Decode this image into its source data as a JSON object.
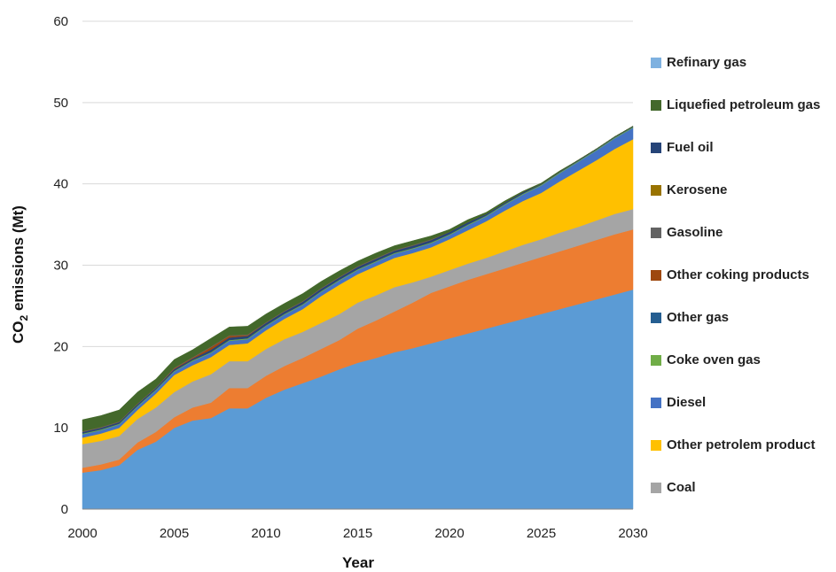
{
  "chart_data": {
    "type": "area",
    "stacked": true,
    "xlabel": "Year",
    "ylabel": "CO2 emissions (Mt)",
    "ylabel_main": "CO",
    "ylabel_sub": "2",
    "ylabel_rest": " emissions (Mt)",
    "xlim": [
      2000,
      2030
    ],
    "ylim": [
      0,
      60
    ],
    "x_ticks": [
      2000,
      2005,
      2010,
      2015,
      2020,
      2025,
      2030
    ],
    "y_ticks": [
      0,
      10,
      20,
      30,
      40,
      50,
      60
    ],
    "grid": "horizontal",
    "legend_position": "right",
    "x": [
      2000,
      2001,
      2002,
      2003,
      2004,
      2005,
      2006,
      2007,
      2008,
      2009,
      2010,
      2011,
      2012,
      2013,
      2014,
      2015,
      2016,
      2017,
      2018,
      2019,
      2020,
      2021,
      2022,
      2023,
      2024,
      2025,
      2026,
      2027,
      2028,
      2029,
      2030
    ],
    "series": [
      {
        "name": "Coal",
        "color": "#5b9bd5",
        "values": [
          4.5,
          4.8,
          5.4,
          7.3,
          8.3,
          10.0,
          10.9,
          11.2,
          12.4,
          12.4,
          13.7,
          14.7,
          15.5,
          16.3,
          17.2,
          18.0,
          18.6,
          19.3,
          19.8,
          20.4,
          21.0,
          21.6,
          22.2,
          22.8,
          23.4,
          24.0,
          24.6,
          25.2,
          25.8,
          26.4,
          27.0
        ]
      },
      {
        "name": "Other petrolem product",
        "color": "#ed7d31",
        "values": [
          0.6,
          0.7,
          0.7,
          0.9,
          1.2,
          1.3,
          1.6,
          1.9,
          2.5,
          2.5,
          2.7,
          2.9,
          3.1,
          3.4,
          3.6,
          4.2,
          4.6,
          5.0,
          5.6,
          6.2,
          6.4,
          6.6,
          6.7,
          6.8,
          6.9,
          7.0,
          7.1,
          7.2,
          7.3,
          7.4,
          7.4
        ]
      },
      {
        "name": "Diesel",
        "color": "#a5a5a5",
        "values": [
          2.9,
          2.9,
          2.9,
          2.9,
          3.0,
          3.1,
          3.2,
          3.5,
          3.3,
          3.3,
          3.3,
          3.3,
          3.2,
          3.2,
          3.2,
          3.2,
          3.1,
          3.0,
          2.5,
          2.0,
          2.0,
          2.0,
          2.0,
          2.1,
          2.2,
          2.2,
          2.3,
          2.3,
          2.4,
          2.5,
          2.5
        ]
      },
      {
        "name": "Coke oven gas",
        "color": "#ffc000",
        "values": [
          0.8,
          0.9,
          1.0,
          1.1,
          1.7,
          2.1,
          2.0,
          2.1,
          2.0,
          2.2,
          2.3,
          2.5,
          2.8,
          3.3,
          3.6,
          3.5,
          3.6,
          3.6,
          3.6,
          3.6,
          3.8,
          4.1,
          4.5,
          5.0,
          5.4,
          5.7,
          6.3,
          6.9,
          7.4,
          8.0,
          8.6
        ]
      },
      {
        "name": "Other gas",
        "color": "#4472c4",
        "values": [
          0.4,
          0.4,
          0.4,
          0.4,
          0.4,
          0.4,
          0.5,
          0.5,
          0.5,
          0.5,
          0.5,
          0.5,
          0.5,
          0.5,
          0.5,
          0.5,
          0.5,
          0.5,
          0.5,
          0.5,
          0.5,
          0.6,
          0.6,
          0.7,
          0.8,
          0.9,
          1.0,
          1.1,
          1.2,
          1.3,
          1.4
        ]
      },
      {
        "name": "Other coking products",
        "color": "#70ad47",
        "values": [
          0.1,
          0.1,
          0.1,
          0.1,
          0.1,
          0.1,
          0.1,
          0.1,
          0.1,
          0.1,
          0.1,
          0.1,
          0.1,
          0.1,
          0.1,
          0.1,
          0.1,
          0.1,
          0.1,
          0.1,
          0.1,
          0.1,
          0.1,
          0.1,
          0.1,
          0.1,
          0.1,
          0.1,
          0.1,
          0.1,
          0.1
        ]
      },
      {
        "name": "Gasoline",
        "color": "#264478",
        "values": [
          0.2,
          0.2,
          0.2,
          0.2,
          0.2,
          0.2,
          0.2,
          0.3,
          0.3,
          0.3,
          0.3,
          0.3,
          0.3,
          0.3,
          0.3,
          0.3,
          0.3,
          0.3,
          0.3,
          0.3,
          0.3,
          0.3,
          0.2,
          0.2,
          0.2,
          0.1,
          0.1,
          0.1,
          0.1,
          0.1,
          0.1
        ]
      },
      {
        "name": "Kerosene",
        "color": "#9e480e",
        "values": [
          0.0,
          0.0,
          0.0,
          0.0,
          0.0,
          0.1,
          0.1,
          0.3,
          0.2,
          0.1,
          0.0,
          0.0,
          0.0,
          0.0,
          0.0,
          0.0,
          0.0,
          0.0,
          0.0,
          0.0,
          0.0,
          0.0,
          0.0,
          0.0,
          0.0,
          0.0,
          0.0,
          0.0,
          0.0,
          0.0,
          0.0
        ]
      },
      {
        "name": "Fuel oil",
        "color": "#636363",
        "values": [
          0.1,
          0.1,
          0.1,
          0.1,
          0.1,
          0.1,
          0.1,
          0.1,
          0.1,
          0.1,
          0.1,
          0.1,
          0.1,
          0.1,
          0.1,
          0.1,
          0.1,
          0.1,
          0.1,
          0.1,
          0.0,
          0.0,
          0.0,
          0.0,
          0.0,
          0.0,
          0.0,
          0.0,
          0.0,
          0.0,
          0.0
        ]
      },
      {
        "name": "Liquefied petroleum gas",
        "color": "#997300",
        "values": [
          0.0,
          0.0,
          0.0,
          0.0,
          0.0,
          0.0,
          0.0,
          0.0,
          0.0,
          0.0,
          0.0,
          0.0,
          0.0,
          0.0,
          0.0,
          0.0,
          0.0,
          0.0,
          0.0,
          0.0,
          0.0,
          0.0,
          0.0,
          0.0,
          0.0,
          0.0,
          0.0,
          0.0,
          0.0,
          0.0,
          0.0
        ]
      },
      {
        "name": "Refinary gas",
        "color": "#43682b",
        "values": [
          1.4,
          1.4,
          1.4,
          1.4,
          1.0,
          1.0,
          0.9,
          1.0,
          1.0,
          1.0,
          1.0,
          0.9,
          0.9,
          0.8,
          0.7,
          0.6,
          0.6,
          0.5,
          0.5,
          0.4,
          0.3,
          0.3,
          0.2,
          0.2,
          0.1,
          0.1,
          0.1,
          0.0,
          0.0,
          0.0,
          0.0
        ]
      }
    ],
    "legend": [
      {
        "label": "Refinary gas",
        "color": "#7eb1e0"
      },
      {
        "label": "Liquefied petroleum gas",
        "color": "#43682b"
      },
      {
        "label": "Fuel oil",
        "color": "#264478"
      },
      {
        "label": "Kerosene",
        "color": "#997300"
      },
      {
        "label": "Gasoline",
        "color": "#636363"
      },
      {
        "label": "Other coking products",
        "color": "#9e480e"
      },
      {
        "label": "Other gas",
        "color": "#255e91"
      },
      {
        "label": "Coke oven gas",
        "color": "#70ad47"
      },
      {
        "label": "Diesel",
        "color": "#4472c4"
      },
      {
        "label": "Other petrolem product",
        "color": "#ffc000"
      },
      {
        "label": "Coal",
        "color": "#a5a5a5"
      }
    ]
  }
}
